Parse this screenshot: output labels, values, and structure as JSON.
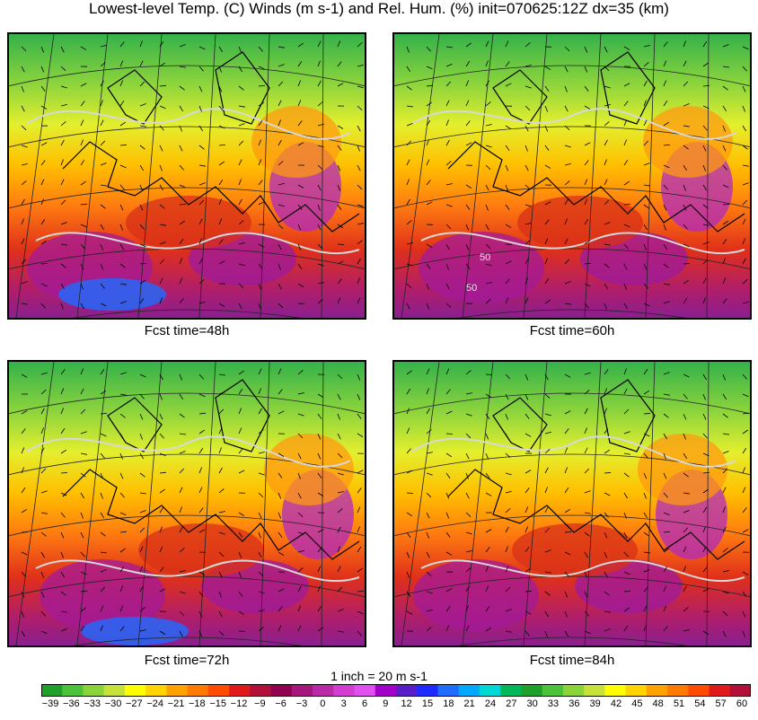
{
  "title": "Lowest-level Temp. (C) Winds (m s-1) and Rel. Hum. (%) init=070625:12Z dx=35 (km)",
  "panels": [
    {
      "caption": "Fcst time=48h",
      "contour_labels": []
    },
    {
      "caption": "Fcst time=60h",
      "contour_labels": [
        "50",
        "50"
      ]
    },
    {
      "caption": "Fcst time=72h",
      "contour_labels": []
    },
    {
      "caption": "Fcst time=84h",
      "contour_labels": []
    }
  ],
  "wind_scale_label": "1 inch = 20 m s-1",
  "colorbar": {
    "tick_labels": [
      "−39",
      "−36",
      "−33",
      "−30",
      "−27",
      "−24",
      "−21",
      "−18",
      "−15",
      "−12",
      "−9",
      "−6",
      "−3",
      "0",
      "3",
      "6",
      "9",
      "12",
      "15",
      "18",
      "21",
      "24",
      "27",
      "30",
      "33",
      "36",
      "39",
      "42",
      "45",
      "48",
      "51",
      "54",
      "57",
      "60"
    ],
    "colors": [
      "#1fa02a",
      "#4cc13a",
      "#8ad43a",
      "#c6e23a",
      "#ffff00",
      "#ffd400",
      "#ffa200",
      "#ff7a00",
      "#ff4a00",
      "#e01a1a",
      "#b0103a",
      "#900050",
      "#a3187a",
      "#b92aa6",
      "#d43ed0",
      "#e050f0",
      "#a000c8",
      "#5a1ec8",
      "#1e2aff",
      "#1f6cff",
      "#00a8ff",
      "#00d8d8",
      "#00b85a",
      "#1fa02a",
      "#4cc13a",
      "#8ad43a",
      "#c6e23a",
      "#ffff00",
      "#ffd400",
      "#ffa200",
      "#ff7a00",
      "#ff4a00",
      "#e01a1a",
      "#b0103a"
    ]
  }
}
